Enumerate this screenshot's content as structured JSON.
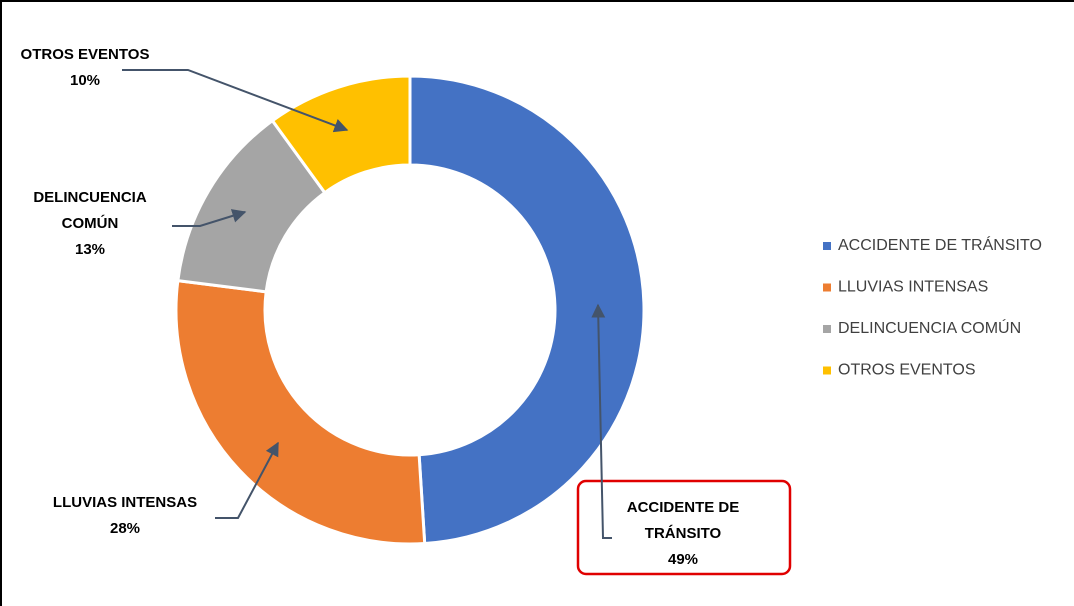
{
  "chart_data": {
    "type": "donut",
    "categories": [
      "ACCIDENTE DE TRÁNSITO",
      "LLUVIAS INTENSAS",
      "DELINCUENCIA COMÚN",
      "OTROS EVENTOS"
    ],
    "values": [
      49,
      28,
      13,
      10
    ],
    "value_labels": [
      "49%",
      "28%",
      "13%",
      "10%"
    ],
    "colors": [
      "#4472c4",
      "#ed7d31",
      "#a5a5a5",
      "#ffc000"
    ],
    "legend": "right"
  }
}
